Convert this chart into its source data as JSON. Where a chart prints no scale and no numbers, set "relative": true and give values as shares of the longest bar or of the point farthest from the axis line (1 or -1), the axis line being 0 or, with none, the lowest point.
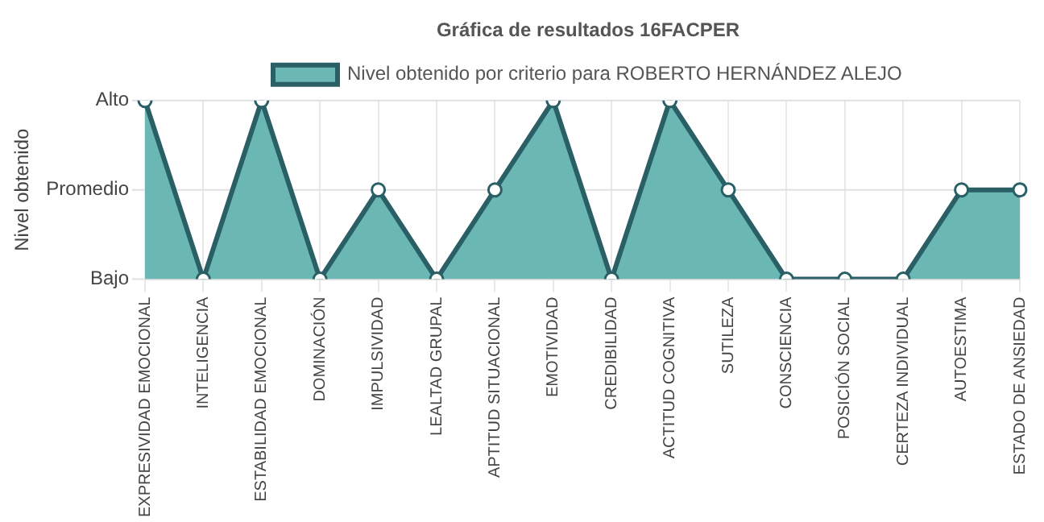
{
  "chart_data": {
    "type": "area",
    "title": "Gráfica de resultados 16FACPER",
    "annotations": [
      "Nivel obtenido"
    ],
    "relative": true,
    "categories": [
      "EXPRESIVIDAD EMOCIONAL",
      "INTELIGENCIA",
      "ESTABILIDAD EMOCIONAL",
      "DOMINACIÓN",
      "IMPULSIVIDAD",
      "LEALTAD GRUPAL",
      "APTITUD SITUACIONAL",
      "EMOTIVIDAD",
      "CREDIBILIDAD",
      "ACTITUD COGNITIVA",
      "SUTILEZA",
      "CONSCIENCIA",
      "POSICIÓN SOCIAL",
      "CERTEZA INDIVIDUAL",
      "AUTOESTIMA",
      "ESTADO DE ANSIEDAD"
    ],
    "series": [
      {
        "name": "Nivel obtenido por criterio para ROBERTO HERNÁNDEZ ALEJO",
        "color": "#2a5f66",
        "values": [
          1,
          0,
          1,
          0,
          0.5,
          0,
          0.5,
          1,
          0,
          1,
          0.5,
          0,
          0,
          0,
          0.5,
          0.5
        ]
      }
    ],
    "ref_lines": [
      {
        "axis": "y",
        "value": 0,
        "label": "Bajo",
        "color": "#e0e0e0"
      },
      {
        "axis": "y",
        "value": 0.5,
        "label": "Promedio",
        "color": "#e0e0e0"
      },
      {
        "axis": "y",
        "value": 1,
        "label": "Alto",
        "color": "#e0e0e0"
      }
    ],
    "grid": "x",
    "legend": "top",
    "marker": "circle"
  }
}
